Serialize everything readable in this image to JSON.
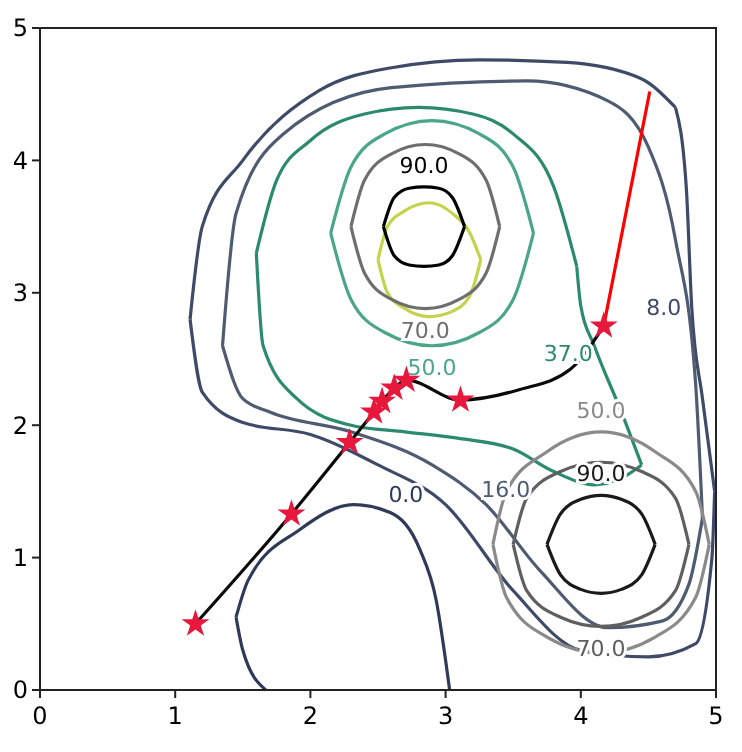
{
  "chart_data": {
    "type": "line",
    "xlim": [
      0,
      5
    ],
    "ylim": [
      0,
      5
    ],
    "xticks": [
      0,
      1,
      2,
      3,
      4,
      5
    ],
    "yticks": [
      0,
      1,
      2,
      3,
      4,
      5
    ],
    "grid": false,
    "series": [
      {
        "color": "#3e4a66",
        "marker": "none",
        "x": [
          1.11,
          1.2,
          1.5,
          2.07,
          2.6,
          3.25,
          3.9,
          4.44,
          4.7
        ],
        "values": [
          2.8,
          3.5,
          4.0,
          4.53,
          4.7,
          4.76,
          4.74,
          4.62,
          4.4
        ]
      },
      {
        "name": "8.0",
        "color": "#3e4a67",
        "marker": "none",
        "x": [
          4.7,
          4.78,
          4.82,
          4.9,
          4.99
        ],
        "values": [
          4.4,
          3.8,
          2.9,
          2.2,
          1.5
        ]
      },
      {
        "color": "#3e4a68",
        "marker": "none",
        "x": [
          1.11,
          1.2,
          1.5,
          2.0,
          2.5,
          3.0,
          3.5,
          4.0,
          4.5,
          4.85,
          4.97,
          4.99
        ],
        "values": [
          2.8,
          2.25,
          2.02,
          1.93,
          1.7,
          1.4,
          0.75,
          0.3,
          0.25,
          0.35,
          1.0,
          1.5
        ]
      },
      {
        "color": "#2f3a58",
        "marker": "none",
        "x": [
          1.45,
          1.5,
          1.67
        ],
        "values": [
          0.55,
          0.3,
          0
        ]
      },
      {
        "name": "0.0",
        "color": "#2f3a59",
        "marker": "none",
        "x": [
          1.45,
          1.54,
          1.92,
          2.32,
          2.59,
          2.81,
          2.93,
          3.03
        ],
        "values": [
          0.55,
          0.83,
          1.21,
          1.4,
          1.34,
          1.06,
          0.68,
          0
        ]
      },
      {
        "color": "#4e5b70",
        "marker": "none",
        "x": [
          1.35,
          1.45,
          1.8,
          2.6,
          3.6,
          4.2,
          4.5,
          4.7,
          4.85,
          4.9
        ],
        "values": [
          2.6,
          3.6,
          4.2,
          4.55,
          4.6,
          4.45,
          4.1,
          3.4,
          2.3,
          1.3
        ]
      },
      {
        "name": "16.0",
        "color": "#4e5b71",
        "marker": "none",
        "x": [
          1.35,
          1.5,
          1.7,
          2.3,
          2.9,
          3.3,
          3.7,
          4.2,
          4.6,
          4.8,
          4.9
        ],
        "values": [
          2.6,
          2.2,
          2.1,
          1.95,
          1.7,
          1.4,
          0.9,
          0.47,
          0.52,
          0.8,
          1.3
        ]
      },
      {
        "color": "#2b8a6e",
        "marker": "none",
        "x": [
          1.6,
          1.75,
          2.0,
          2.4,
          2.8,
          3.2,
          3.5,
          3.8,
          3.97
        ],
        "values": [
          3.3,
          3.85,
          4.15,
          4.35,
          4.4,
          4.35,
          4.2,
          3.8,
          3.2
        ]
      },
      {
        "name": "37.0",
        "color": "#2b8a6f",
        "marker": "none",
        "x": [
          3.97,
          4.0,
          4.1,
          4.3,
          4.45
        ],
        "values": [
          3.2,
          2.9,
          2.6,
          2.1,
          1.7
        ]
      },
      {
        "color": "#2b8a70",
        "marker": "none",
        "x": [
          1.6,
          1.65,
          1.9,
          2.3,
          2.7,
          3.1,
          3.5,
          3.8,
          4.1,
          4.3,
          4.45
        ],
        "values": [
          3.3,
          2.6,
          2.2,
          2.0,
          1.95,
          1.9,
          1.82,
          1.65,
          1.55,
          1.6,
          1.7
        ]
      },
      {
        "color": "#4aa58a",
        "marker": "none",
        "x": [
          2.15,
          2.3,
          2.55,
          2.9,
          3.25,
          3.5,
          3.65
        ],
        "values": [
          3.45,
          3.95,
          4.2,
          4.3,
          4.2,
          3.95,
          3.45
        ]
      },
      {
        "name": "50.0",
        "color": "#4aa58b",
        "marker": "none",
        "x": [
          2.15,
          2.3,
          2.55,
          2.9,
          3.25,
          3.5,
          3.65
        ],
        "values": [
          3.45,
          2.95,
          2.7,
          2.6,
          2.7,
          2.95,
          3.45
        ]
      },
      {
        "name": "50.0",
        "color": "#8a8a8a",
        "marker": "none",
        "x": [
          3.35,
          3.45,
          3.75,
          4.15,
          4.55,
          4.85,
          4.95
        ],
        "values": [
          1.1,
          1.5,
          1.8,
          1.95,
          1.8,
          1.5,
          1.1
        ]
      },
      {
        "color": "#8a8a8b",
        "marker": "none",
        "x": [
          3.35,
          3.45,
          3.75,
          4.15,
          4.55,
          4.85,
          4.95
        ],
        "values": [
          1.1,
          0.7,
          0.4,
          0.28,
          0.4,
          0.7,
          1.1
        ]
      },
      {
        "color": "#c5d24a",
        "marker": "none",
        "x": [
          2.5,
          2.57,
          2.7,
          2.88,
          3.05,
          3.18,
          3.26
        ],
        "values": [
          3.25,
          3.5,
          3.62,
          3.68,
          3.6,
          3.45,
          3.25
        ]
      },
      {
        "color": "#c5d24b",
        "marker": "none",
        "x": [
          2.5,
          2.57,
          2.7,
          2.88,
          3.05,
          3.18,
          3.26
        ],
        "values": [
          3.25,
          3.0,
          2.88,
          2.82,
          2.86,
          2.98,
          3.25
        ]
      },
      {
        "color": "#6e6e6e",
        "marker": "none",
        "x": [
          2.3,
          2.4,
          2.6,
          2.85,
          3.1,
          3.3,
          3.4
        ],
        "values": [
          3.5,
          3.85,
          4.05,
          4.12,
          4.05,
          3.85,
          3.5
        ]
      },
      {
        "name": "70.0",
        "color": "#6e6e6f",
        "marker": "none",
        "x": [
          2.3,
          2.4,
          2.6,
          2.85,
          3.1,
          3.3,
          3.4
        ],
        "values": [
          3.5,
          3.15,
          2.95,
          2.88,
          2.95,
          3.15,
          3.5
        ]
      },
      {
        "color": "#5f5f5f",
        "marker": "none",
        "x": [
          3.5,
          3.6,
          3.85,
          4.15,
          4.45,
          4.7,
          4.8
        ],
        "values": [
          1.1,
          1.45,
          1.65,
          1.72,
          1.65,
          1.45,
          1.1
        ]
      },
      {
        "name": "70.0",
        "color": "#5f5f60",
        "marker": "none",
        "x": [
          3.5,
          3.6,
          3.85,
          4.15,
          4.45,
          4.7,
          4.8
        ],
        "values": [
          1.1,
          0.75,
          0.55,
          0.48,
          0.55,
          0.75,
          1.1
        ]
      },
      {
        "name": "90.0",
        "color": "#000000",
        "marker": "none",
        "x": [
          2.54,
          2.62,
          2.73,
          2.84,
          2.95,
          3.05,
          3.14
        ],
        "values": [
          3.5,
          3.72,
          3.79,
          3.8,
          3.79,
          3.72,
          3.5
        ]
      },
      {
        "color": "#010101",
        "marker": "none",
        "x": [
          2.54,
          2.62,
          2.73,
          2.84,
          2.95,
          3.05,
          3.14
        ],
        "values": [
          3.5,
          3.28,
          3.21,
          3.2,
          3.21,
          3.28,
          3.5
        ]
      },
      {
        "name": "90.0",
        "color": "#1a1a1a",
        "marker": "none",
        "x": [
          3.75,
          3.85,
          4.0,
          4.15,
          4.3,
          4.45,
          4.55
        ],
        "values": [
          1.1,
          1.33,
          1.44,
          1.47,
          1.44,
          1.33,
          1.1
        ]
      },
      {
        "color": "#1a1a1b",
        "marker": "none",
        "x": [
          3.75,
          3.85,
          4.0,
          4.15,
          4.3,
          4.45,
          4.55
        ],
        "values": [
          1.1,
          0.87,
          0.76,
          0.73,
          0.76,
          0.87,
          1.1
        ]
      },
      {
        "color": "#0a0a0a",
        "marker": "none",
        "x": [
          1.15,
          1.86,
          2.29,
          2.47,
          2.53,
          2.62,
          2.71,
          3.11,
          3.55,
          3.92,
          4.17
        ],
        "values": [
          0.5,
          1.33,
          1.87,
          2.1,
          2.18,
          2.28,
          2.34,
          2.19,
          2.27,
          2.42,
          2.75
        ]
      },
      {
        "color": "#ff0000",
        "marker": "none",
        "x": [
          4.17,
          4.51
        ],
        "values": [
          2.75,
          4.52
        ]
      },
      {
        "type": "scatter",
        "color": "#e8173c",
        "marker": "star",
        "x": [
          1.15,
          1.86,
          2.29,
          2.47,
          2.53,
          2.62,
          2.71,
          3.11,
          4.17
        ],
        "values": [
          0.5,
          1.33,
          1.87,
          2.1,
          2.18,
          2.28,
          2.34,
          2.19,
          2.75
        ]
      }
    ]
  }
}
